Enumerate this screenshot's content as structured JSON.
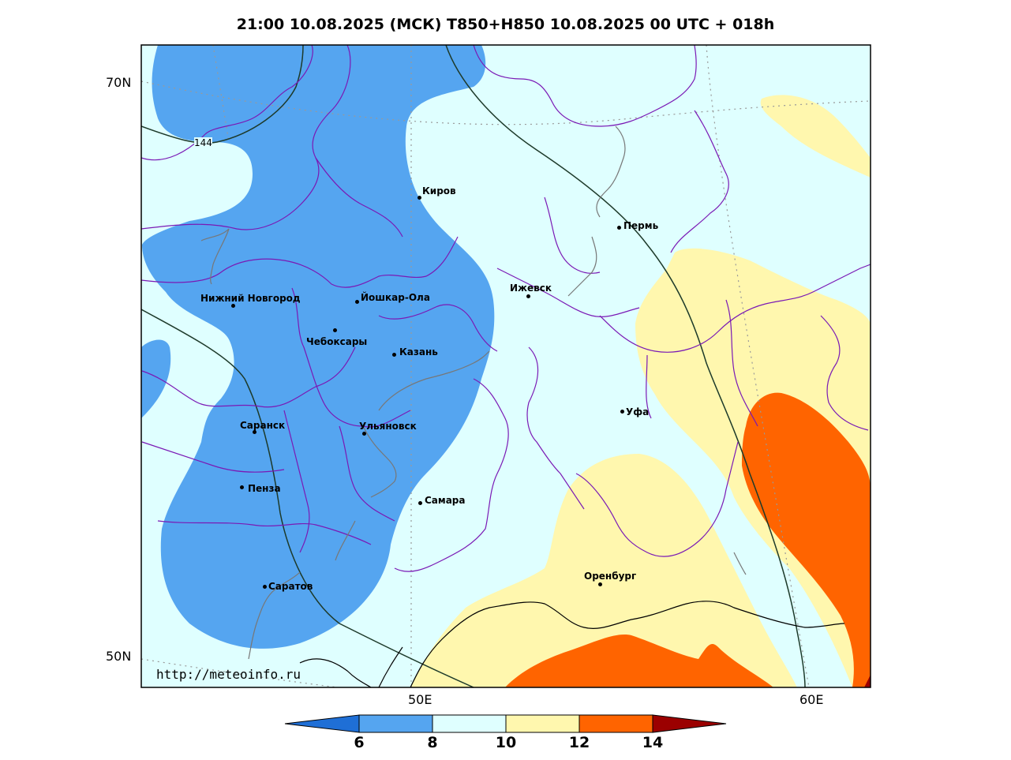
{
  "title": "21:00 10.08.2025 (МСК) T850+H850 10.08.2025 00 UTC + 018h",
  "latitude_labels": [
    "70N",
    "50N"
  ],
  "longitude_labels": [
    "50E",
    "60E"
  ],
  "contour_label": "144",
  "source_url": "http://meteoinfo.ru",
  "cities": [
    {
      "name": "Киров"
    },
    {
      "name": "Пермь"
    },
    {
      "name": "Нижний Новгород"
    },
    {
      "name": "Йошкар-Ола"
    },
    {
      "name": "Ижевск"
    },
    {
      "name": "Чебоксары"
    },
    {
      "name": "Казань"
    },
    {
      "name": "Уфа"
    },
    {
      "name": "Саранск"
    },
    {
      "name": "Ульяновск"
    },
    {
      "name": "Пенза"
    },
    {
      "name": "Самара"
    },
    {
      "name": "Оренбург"
    },
    {
      "name": "Саратов"
    }
  ],
  "colorbar": {
    "ticks": [
      "6",
      "8",
      "10",
      "12",
      "14"
    ],
    "colors": [
      "#1f6fd6",
      "#55a5f0",
      "#dfffff",
      "#fff7ae",
      "#ff6400",
      "#9b0000"
    ]
  }
}
